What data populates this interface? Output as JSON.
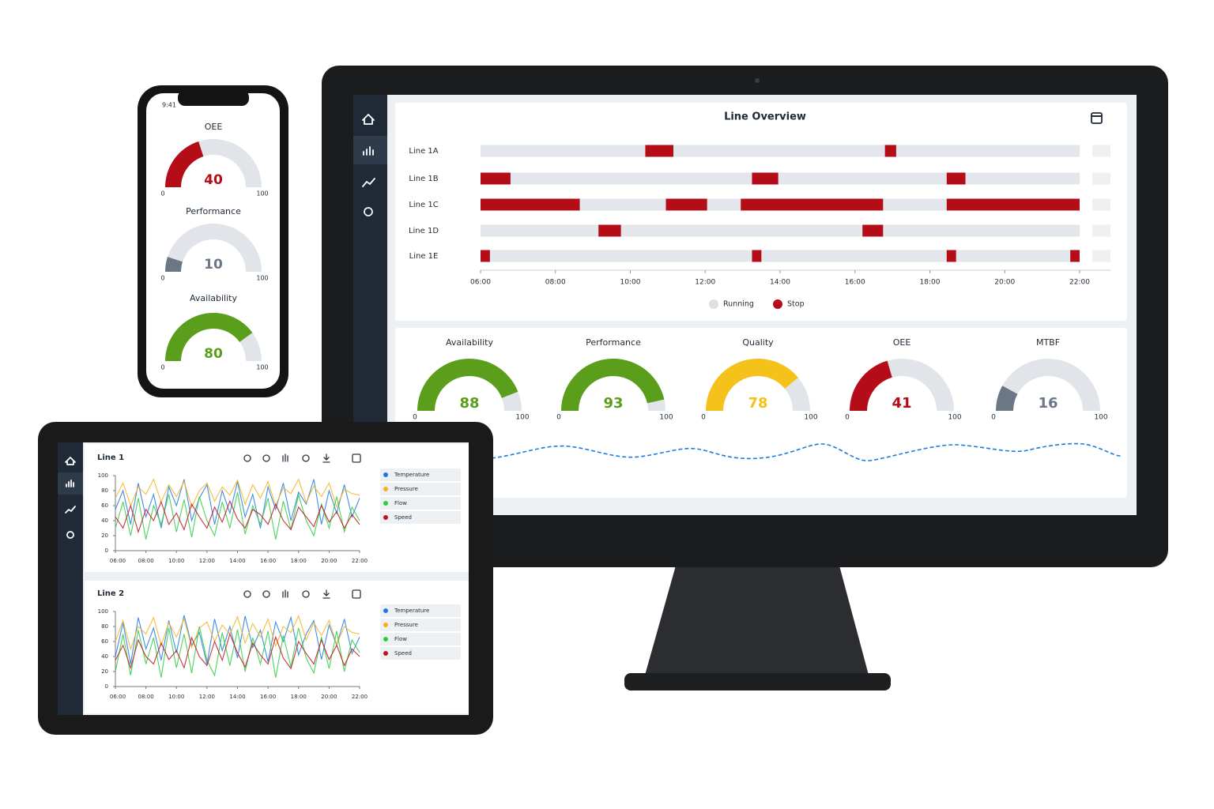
{
  "phone": {
    "time": "9:41",
    "gauges": [
      {
        "title": "OEE",
        "value": 40,
        "min": 0,
        "max": 100,
        "color": "#b50d18"
      },
      {
        "title": "Performance",
        "value": 10,
        "min": 0,
        "max": 100,
        "color": "#6b7785"
      },
      {
        "title": "Availability",
        "value": 80,
        "min": 0,
        "max": 100,
        "color": "#5a9e1c"
      }
    ]
  },
  "monitor": {
    "timeline": {
      "type": "timeline",
      "title": "Line Overview",
      "xlim": [
        6,
        22
      ],
      "xticks": [
        {
          "value": 6,
          "label": "06:00"
        },
        {
          "value": 8,
          "label": "08:00"
        },
        {
          "value": 10,
          "label": "10:00"
        },
        {
          "value": 12,
          "label": "12:00"
        },
        {
          "value": 14,
          "label": "14:00"
        },
        {
          "value": 16,
          "label": "16:00"
        },
        {
          "value": 18,
          "label": "18:00"
        },
        {
          "value": 20,
          "label": "20:00"
        },
        {
          "value": 22,
          "label": "22:00"
        }
      ],
      "legend": [
        {
          "name": "Running",
          "color": "#e3e6ea"
        },
        {
          "name": "Stop",
          "color": "#b50d18"
        }
      ],
      "rows": [
        {
          "name": "Line 1A",
          "stops": [
            {
              "start": 10.4,
              "end": 11.15
            },
            {
              "start": 16.8,
              "end": 17.1
            }
          ]
        },
        {
          "name": "Line 1B",
          "stops": [
            {
              "start": 6,
              "end": 6.8
            },
            {
              "start": 13.25,
              "end": 13.95
            },
            {
              "start": 18.45,
              "end": 18.95
            }
          ]
        },
        {
          "name": "Line 1C",
          "stops": [
            {
              "start": 6,
              "end": 8.65
            },
            {
              "start": 10.95,
              "end": 12.05
            },
            {
              "start": 12.95,
              "end": 16.75
            },
            {
              "start": 18.45,
              "end": 22
            }
          ]
        },
        {
          "name": "Line 1D",
          "stops": [
            {
              "start": 9.15,
              "end": 9.75
            },
            {
              "start": 16.2,
              "end": 16.75
            }
          ]
        },
        {
          "name": "Line 1E",
          "stops": [
            {
              "start": 6,
              "end": 6.25
            },
            {
              "start": 13.25,
              "end": 13.5
            },
            {
              "start": 18.45,
              "end": 18.7
            },
            {
              "start": 21.75,
              "end": 22
            }
          ]
        }
      ]
    },
    "gauges": [
      {
        "title": "Availability",
        "value": 88,
        "min": 0,
        "max": 100,
        "color": "#5a9e1c"
      },
      {
        "title": "Performance",
        "value": 93,
        "min": 0,
        "max": 100,
        "color": "#5a9e1c"
      },
      {
        "title": "Quality",
        "value": 78,
        "min": 0,
        "max": 100,
        "color": "#f5c21b"
      },
      {
        "title": "OEE",
        "value": 41,
        "min": 0,
        "max": 100,
        "color": "#b50d18"
      },
      {
        "title": "MTBF",
        "value": 16,
        "min": 0,
        "max": 100,
        "color": "#6b7785"
      }
    ]
  },
  "tablet": {
    "charts": [
      {
        "type": "line",
        "title": "Line 1",
        "xlim": [
          6,
          22
        ],
        "ylim": [
          0,
          100
        ],
        "xticks": [
          {
            "value": 6,
            "label": "06:00"
          },
          {
            "value": 8,
            "label": "08:00"
          },
          {
            "value": 10,
            "label": "10:00"
          },
          {
            "value": 12,
            "label": "12:00"
          },
          {
            "value": 14,
            "label": "14:00"
          },
          {
            "value": 16,
            "label": "16:00"
          },
          {
            "value": 18,
            "label": "18:00"
          },
          {
            "value": 20,
            "label": "20:00"
          },
          {
            "value": 22,
            "label": "22:00"
          }
        ],
        "yticks": [
          0,
          20,
          40,
          60,
          80,
          100
        ],
        "x": [
          6,
          6.5,
          7,
          7.5,
          8,
          8.5,
          9,
          9.5,
          10,
          10.5,
          11,
          11.5,
          12,
          12.5,
          13,
          13.5,
          14,
          14.5,
          15,
          15.5,
          16,
          16.5,
          17,
          17.5,
          18,
          18.5,
          19,
          19.5,
          20,
          20.5,
          21,
          21.5,
          22
        ],
        "series": [
          {
            "name": "Temperature",
            "color": "#1f7ae0",
            "values": [
              55,
              80,
              35,
              90,
              45,
              75,
              30,
              85,
              60,
              95,
              40,
              70,
              88,
              35,
              80,
              50,
              92,
              45,
              75,
              30,
              85,
              55,
              90,
              40,
              78,
              62,
              95,
              35,
              80,
              50,
              88,
              45,
              70
            ]
          },
          {
            "name": "Pressure",
            "color": "#f5b31b",
            "values": [
              70,
              90,
              60,
              85,
              75,
              95,
              65,
              88,
              72,
              92,
              58,
              80,
              90,
              66,
              85,
              74,
              94,
              62,
              88,
              70,
              92,
              60,
              84,
              76,
              95,
              64,
              86,
              72,
              90,
              58,
              82,
              76,
              74
            ]
          },
          {
            "name": "Flow",
            "color": "#2ecc40",
            "values": [
              30,
              65,
              20,
              70,
              15,
              60,
              35,
              75,
              25,
              68,
              18,
              72,
              40,
              20,
              65,
              30,
              78,
              22,
              60,
              35,
              70,
              15,
              66,
              28,
              74,
              40,
              20,
              62,
              30,
              72,
              25,
              58,
              40
            ]
          },
          {
            "name": "Speed",
            "color": "#c0121f",
            "values": [
              45,
              30,
              60,
              25,
              55,
              40,
              65,
              35,
              50,
              28,
              62,
              45,
              30,
              58,
              38,
              66,
              42,
              30,
              55,
              48,
              35,
              62,
              40,
              28,
              58,
              45,
              32,
              60,
              38,
              52,
              30,
              48,
              35
            ]
          }
        ]
      },
      {
        "type": "line",
        "title": "Line 2",
        "xlim": [
          6,
          22
        ],
        "ylim": [
          0,
          100
        ],
        "xticks": [
          {
            "value": 6,
            "label": "06:00"
          },
          {
            "value": 8,
            "label": "08:00"
          },
          {
            "value": 10,
            "label": "10:00"
          },
          {
            "value": 12,
            "label": "12:00"
          },
          {
            "value": 14,
            "label": "14:00"
          },
          {
            "value": 16,
            "label": "16:00"
          },
          {
            "value": 18,
            "label": "18:00"
          },
          {
            "value": 20,
            "label": "20:00"
          },
          {
            "value": 22,
            "label": "22:00"
          }
        ],
        "yticks": [
          0,
          20,
          40,
          60,
          80,
          100
        ],
        "x": [
          6,
          6.5,
          7,
          7.5,
          8,
          8.5,
          9,
          9.5,
          10,
          10.5,
          11,
          11.5,
          12,
          12.5,
          13,
          13.5,
          14,
          14.5,
          15,
          15.5,
          16,
          16.5,
          17,
          17.5,
          18,
          18.5,
          19,
          19.5,
          20,
          20.5,
          21,
          21.5,
          22
        ],
        "series": [
          {
            "name": "Temperature",
            "color": "#1f7ae0",
            "values": [
              40,
              85,
              30,
              92,
              50,
              78,
              35,
              88,
              45,
              95,
              55,
              72,
              30,
              90,
              48,
              80,
              38,
              94,
              52,
              75,
              33,
              86,
              60,
              92,
              42,
              70,
              88,
              36,
              82,
              55,
              90,
              44,
              66
            ]
          },
          {
            "name": "Pressure",
            "color": "#f5b31b",
            "values": [
              60,
              88,
              50,
              80,
              70,
              92,
              55,
              85,
              66,
              90,
              52,
              78,
              86,
              60,
              82,
              70,
              93,
              58,
              84,
              66,
              90,
              54,
              80,
              72,
              94,
              62,
              85,
              68,
              88,
              56,
              80,
              72,
              70
            ]
          },
          {
            "name": "Flow",
            "color": "#2ecc40",
            "values": [
              20,
              70,
              15,
              75,
              30,
              65,
              12,
              78,
              25,
              70,
              18,
              80,
              35,
              15,
              72,
              28,
              76,
              20,
              65,
              30,
              74,
              12,
              68,
              26,
              78,
              38,
              18,
              66,
              24,
              74,
              20,
              62,
              45
            ]
          },
          {
            "name": "Speed",
            "color": "#c0121f",
            "values": [
              35,
              55,
              25,
              62,
              40,
              30,
              58,
              36,
              48,
              25,
              65,
              40,
              28,
              60,
              35,
              70,
              45,
              26,
              58,
              42,
              30,
              66,
              38,
              24,
              60,
              44,
              30,
              62,
              36,
              55,
              28,
              50,
              40
            ]
          }
        ]
      }
    ]
  }
}
